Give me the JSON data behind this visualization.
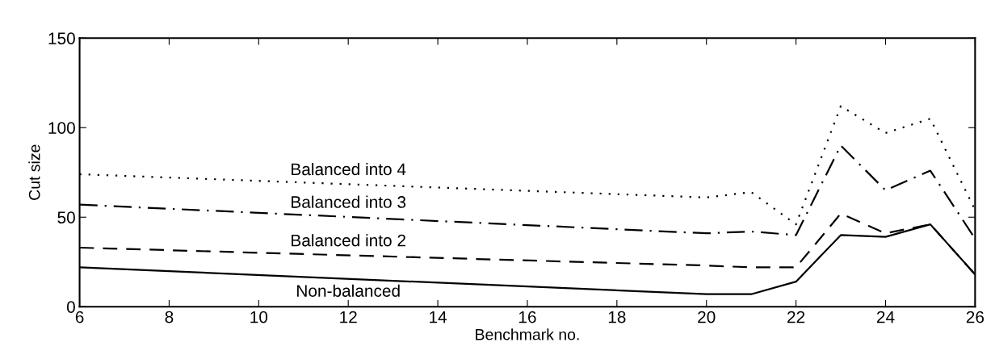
{
  "chart_data": {
    "type": "line",
    "xlabel": "Benchmark no.",
    "ylabel": "Cut size",
    "xlim": [
      6,
      26
    ],
    "xticks": [
      6,
      8,
      10,
      12,
      14,
      16,
      18,
      20,
      22,
      24,
      26
    ],
    "ylim": [
      0,
      150
    ],
    "yticks": [
      0,
      50,
      100,
      150
    ],
    "grid": false,
    "legend": false,
    "marker": "none",
    "x": [
      6,
      20,
      21,
      22,
      23,
      24,
      25,
      26
    ],
    "series": [
      {
        "name": "Balanced into 4",
        "color": "#000000",
        "line_style": "dotted",
        "values": [
          74,
          61,
          64,
          46,
          112,
          97,
          105,
          54
        ]
      },
      {
        "name": "Balanced into 3",
        "color": "#000000",
        "line_style": "dashdot",
        "values": [
          57,
          41,
          42,
          40,
          90,
          65,
          76,
          38
        ]
      },
      {
        "name": "Balanced into 2",
        "color": "#000000",
        "line_style": "dashed",
        "values": [
          33,
          23,
          22,
          22,
          52,
          41,
          46,
          18
        ]
      },
      {
        "name": "Non-balanced",
        "color": "#000000",
        "line_style": "solid",
        "values": [
          22,
          7,
          7,
          14,
          40,
          39,
          46,
          18
        ]
      }
    ]
  }
}
